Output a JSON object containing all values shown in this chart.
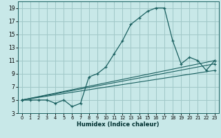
{
  "xlabel": "Humidex (Indice chaleur)",
  "background_color": "#c8e8e8",
  "grid_color": "#a0c8c8",
  "line_color": "#1a6060",
  "xlim": [
    -0.5,
    23.5
  ],
  "ylim": [
    3,
    20
  ],
  "xticks": [
    0,
    1,
    2,
    3,
    4,
    5,
    6,
    7,
    8,
    9,
    10,
    11,
    12,
    13,
    14,
    15,
    16,
    17,
    18,
    19,
    20,
    21,
    22,
    23
  ],
  "yticks": [
    3,
    5,
    7,
    9,
    11,
    13,
    15,
    17,
    19
  ],
  "series": [
    {
      "x": [
        0,
        1,
        2,
        3,
        4,
        5,
        6,
        7,
        8,
        9,
        10,
        11,
        12,
        13,
        14,
        15,
        16,
        17,
        18,
        19,
        20,
        21,
        22,
        23
      ],
      "y": [
        5,
        5,
        5,
        5,
        4.5,
        5,
        4,
        4.5,
        8.5,
        9,
        10,
        12,
        14,
        16.5,
        17.5,
        18.5,
        19,
        19,
        14,
        10.5,
        11.5,
        11,
        9.5,
        11
      ]
    },
    {
      "x": [
        0,
        23
      ],
      "y": [
        5,
        9.5
      ]
    },
    {
      "x": [
        0,
        23
      ],
      "y": [
        5,
        10.5
      ]
    },
    {
      "x": [
        0,
        23
      ],
      "y": [
        5,
        11
      ]
    }
  ]
}
